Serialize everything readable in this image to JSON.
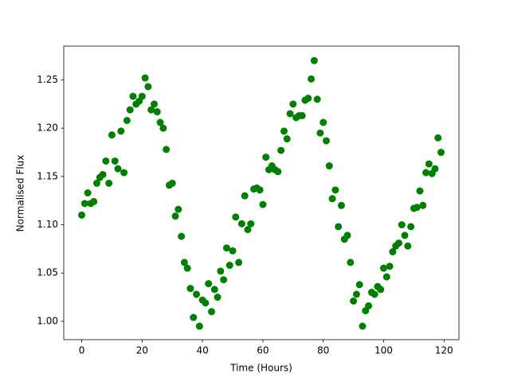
{
  "chart_data": {
    "type": "scatter",
    "xlabel": "Time (Hours)",
    "ylabel": "Normalised Flux",
    "x": [
      0,
      1,
      2,
      3,
      4,
      5,
      6,
      7,
      8,
      9,
      10,
      11,
      12,
      13,
      14,
      15,
      16,
      17,
      18,
      19,
      20,
      21,
      22,
      23,
      24,
      25,
      26,
      27,
      28,
      29,
      30,
      31,
      32,
      33,
      34,
      35,
      36,
      37,
      38,
      39,
      40,
      41,
      42,
      43,
      44,
      45,
      46,
      47,
      48,
      49,
      50,
      51,
      52,
      53,
      54,
      55,
      56,
      57,
      58,
      59,
      60,
      61,
      62,
      63,
      64,
      65,
      66,
      67,
      68,
      69,
      70,
      71,
      72,
      73,
      74,
      75,
      76,
      77,
      78,
      79,
      80,
      81,
      82,
      83,
      84,
      85,
      86,
      87,
      88,
      89,
      90,
      91,
      92,
      93,
      94,
      95,
      96,
      97,
      98,
      99,
      100,
      101,
      102,
      103,
      104,
      105,
      106,
      107,
      108,
      109,
      110,
      111,
      112,
      113,
      114,
      115,
      116,
      117,
      118,
      119
    ],
    "values": [
      1.11,
      1.122,
      1.133,
      1.122,
      1.124,
      1.143,
      1.149,
      1.152,
      1.166,
      1.143,
      1.193,
      1.166,
      1.158,
      1.197,
      1.154,
      1.208,
      1.219,
      1.233,
      1.225,
      1.228,
      1.233,
      1.252,
      1.243,
      1.219,
      1.225,
      1.217,
      1.206,
      1.2,
      1.178,
      1.141,
      1.143,
      1.109,
      1.116,
      1.088,
      1.061,
      1.055,
      1.034,
      1.004,
      1.028,
      0.995,
      1.022,
      1.019,
      1.039,
      1.01,
      1.033,
      1.025,
      1.052,
      1.043,
      1.076,
      1.058,
      1.073,
      1.108,
      1.061,
      1.101,
      1.13,
      1.095,
      1.101,
      1.137,
      1.138,
      1.136,
      1.121,
      1.17,
      1.157,
      1.161,
      1.157,
      1.155,
      1.177,
      1.197,
      1.189,
      1.215,
      1.225,
      1.211,
      1.213,
      1.213,
      1.229,
      1.231,
      1.251,
      1.27,
      1.23,
      1.195,
      1.206,
      1.187,
      1.161,
      1.127,
      1.136,
      1.098,
      1.12,
      1.085,
      1.089,
      1.061,
      1.021,
      1.028,
      1.038,
      0.995,
      1.011,
      1.016,
      1.03,
      1.028,
      1.036,
      1.033,
      1.055,
      1.046,
      1.057,
      1.072,
      1.078,
      1.081,
      1.1,
      1.089,
      1.078,
      1.098,
      1.117,
      1.118,
      1.135,
      1.12,
      1.154,
      1.163,
      1.153,
      1.158,
      1.19,
      1.175
    ],
    "color": "#008000",
    "xlim": [
      -5.95,
      124.95
    ],
    "xticks": [
      0,
      20,
      40,
      60,
      80,
      100,
      120
    ],
    "ylim": [
      0.981,
      1.285
    ],
    "yticks": [
      {
        "value": 1.0,
        "label": "1.00"
      },
      1.05,
      {
        "value": 1.1,
        "label": "1.10"
      },
      1.15,
      {
        "value": 1.2,
        "label": "1.20"
      },
      1.25
    ]
  }
}
